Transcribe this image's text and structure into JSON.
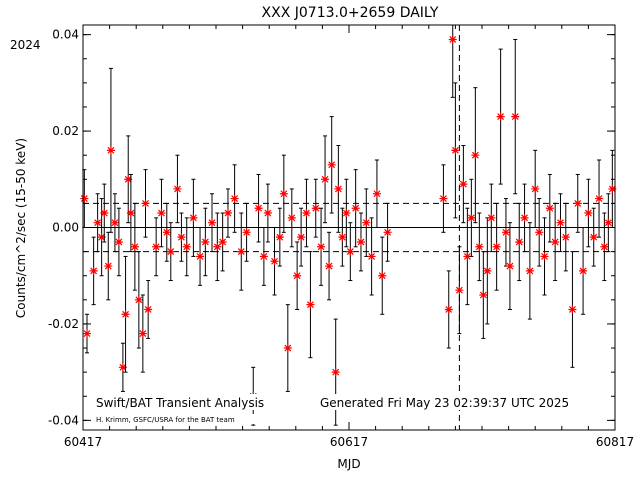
{
  "chart_data": {
    "type": "scatter",
    "title": "XXX J0713.0+2659 DAILY",
    "xlabel": "MJD",
    "ylabel": "Counts/cm^2/sec (15-50 keV)",
    "year_label": "2024",
    "xlim": [
      60417,
      60817
    ],
    "ylim": [
      -0.042,
      0.042
    ],
    "x_ticks": [
      "60417",
      "60617",
      "60817"
    ],
    "y_ticks": [
      "-0.04",
      "-0.02",
      "0.00",
      "0.02",
      "0.04"
    ],
    "footer_left": "Swift/BAT Transient Analysis",
    "footer_credit": "H. Krimm, GSFC/USRA for the BAT team",
    "footer_right": "Generated Fri May 23 02:39:37 UTC 2025",
    "reference_lines": {
      "zero": 0.0,
      "upper": 0.005,
      "lower": -0.005
    },
    "vertical_marker_mjd": 60700,
    "marker_color": "#ff0000",
    "series": [
      {
        "points": [
          {
            "x": 60418,
            "y": 0.006,
            "err": 0.006
          },
          {
            "x": 60420,
            "y": -0.022,
            "err": 0.004
          },
          {
            "x": 60425,
            "y": -0.009,
            "err": 0.007
          },
          {
            "x": 60428,
            "y": 0.001,
            "err": 0.006
          },
          {
            "x": 60431,
            "y": -0.002,
            "err": 0.008
          },
          {
            "x": 60433,
            "y": 0.003,
            "err": 0.006
          },
          {
            "x": 60436,
            "y": -0.008,
            "err": 0.007
          },
          {
            "x": 60438,
            "y": 0.016,
            "err": 0.017
          },
          {
            "x": 60441,
            "y": 0.001,
            "err": 0.006
          },
          {
            "x": 60444,
            "y": -0.003,
            "err": 0.007
          },
          {
            "x": 60447,
            "y": -0.029,
            "err": 0.005
          },
          {
            "x": 60449,
            "y": -0.018,
            "err": 0.012
          },
          {
            "x": 60451,
            "y": 0.01,
            "err": 0.009
          },
          {
            "x": 60453,
            "y": 0.003,
            "err": 0.008
          },
          {
            "x": 60456,
            "y": -0.004,
            "err": 0.009
          },
          {
            "x": 60459,
            "y": -0.015,
            "err": 0.01
          },
          {
            "x": 60462,
            "y": -0.022,
            "err": 0.008
          },
          {
            "x": 60464,
            "y": 0.005,
            "err": 0.007
          },
          {
            "x": 60466,
            "y": -0.017,
            "err": 0.006
          },
          {
            "x": 60472,
            "y": -0.004,
            "err": 0.006
          },
          {
            "x": 60476,
            "y": 0.003,
            "err": 0.007
          },
          {
            "x": 60480,
            "y": -0.001,
            "err": 0.006
          },
          {
            "x": 60483,
            "y": -0.005,
            "err": 0.006
          },
          {
            "x": 60488,
            "y": 0.008,
            "err": 0.007
          },
          {
            "x": 60491,
            "y": -0.002,
            "err": 0.005
          },
          {
            "x": 60495,
            "y": -0.004,
            "err": 0.006
          },
          {
            "x": 60500,
            "y": 0.002,
            "err": 0.008
          },
          {
            "x": 60505,
            "y": -0.006,
            "err": 0.006
          },
          {
            "x": 60509,
            "y": -0.003,
            "err": 0.007
          },
          {
            "x": 60514,
            "y": 0.001,
            "err": 0.006
          },
          {
            "x": 60518,
            "y": -0.004,
            "err": 0.007
          },
          {
            "x": 60522,
            "y": -0.003,
            "err": 0.006
          },
          {
            "x": 60526,
            "y": 0.003,
            "err": 0.005
          },
          {
            "x": 60531,
            "y": 0.006,
            "err": 0.007
          },
          {
            "x": 60536,
            "y": -0.005,
            "err": 0.008
          },
          {
            "x": 60540,
            "y": -0.001,
            "err": 0.006
          },
          {
            "x": 60545,
            "y": -0.035,
            "err": 0.006
          },
          {
            "x": 60549,
            "y": 0.004,
            "err": 0.007
          },
          {
            "x": 60553,
            "y": -0.006,
            "err": 0.006
          },
          {
            "x": 60556,
            "y": 0.003,
            "err": 0.006
          },
          {
            "x": 60561,
            "y": -0.007,
            "err": 0.007
          },
          {
            "x": 60565,
            "y": -0.002,
            "err": 0.006
          },
          {
            "x": 60568,
            "y": 0.007,
            "err": 0.008
          },
          {
            "x": 60571,
            "y": -0.025,
            "err": 0.009
          },
          {
            "x": 60574,
            "y": 0.002,
            "err": 0.006
          },
          {
            "x": 60578,
            "y": -0.01,
            "err": 0.007
          },
          {
            "x": 60581,
            "y": -0.002,
            "err": 0.006
          },
          {
            "x": 60585,
            "y": 0.003,
            "err": 0.007
          },
          {
            "x": 60588,
            "y": -0.016,
            "err": 0.011
          },
          {
            "x": 60592,
            "y": 0.004,
            "err": 0.006
          },
          {
            "x": 60596,
            "y": -0.004,
            "err": 0.008
          },
          {
            "x": 60599,
            "y": 0.01,
            "err": 0.009
          },
          {
            "x": 60602,
            "y": -0.008,
            "err": 0.007
          },
          {
            "x": 60604,
            "y": 0.013,
            "err": 0.01
          },
          {
            "x": 60607,
            "y": -0.03,
            "err": 0.011
          },
          {
            "x": 60609,
            "y": 0.008,
            "err": 0.009
          },
          {
            "x": 60612,
            "y": -0.002,
            "err": 0.006
          },
          {
            "x": 60615,
            "y": 0.003,
            "err": 0.007
          },
          {
            "x": 60618,
            "y": -0.005,
            "err": 0.006
          },
          {
            "x": 60622,
            "y": 0.004,
            "err": 0.008
          },
          {
            "x": 60626,
            "y": -0.003,
            "err": 0.006
          },
          {
            "x": 60630,
            "y": 0.001,
            "err": 0.007
          },
          {
            "x": 60634,
            "y": -0.006,
            "err": 0.008
          },
          {
            "x": 60638,
            "y": 0.007,
            "err": 0.007
          },
          {
            "x": 60642,
            "y": -0.01,
            "err": 0.008
          },
          {
            "x": 60646,
            "y": -0.001,
            "err": 0.006
          },
          {
            "x": 60688,
            "y": 0.006,
            "err": 0.007
          },
          {
            "x": 60692,
            "y": -0.017,
            "err": 0.008
          },
          {
            "x": 60695,
            "y": 0.039,
            "err": 0.012
          },
          {
            "x": 60697,
            "y": 0.016,
            "err": 0.014
          },
          {
            "x": 60700,
            "y": -0.013,
            "err": 0.009
          },
          {
            "x": 60703,
            "y": 0.009,
            "err": 0.008
          },
          {
            "x": 60706,
            "y": -0.006,
            "err": 0.01
          },
          {
            "x": 60709,
            "y": 0.002,
            "err": 0.008
          },
          {
            "x": 60712,
            "y": 0.015,
            "err": 0.014
          },
          {
            "x": 60715,
            "y": -0.004,
            "err": 0.007
          },
          {
            "x": 60718,
            "y": -0.014,
            "err": 0.009
          },
          {
            "x": 60721,
            "y": -0.009,
            "err": 0.011
          },
          {
            "x": 60724,
            "y": 0.002,
            "err": 0.007
          },
          {
            "x": 60728,
            "y": -0.004,
            "err": 0.009
          },
          {
            "x": 60731,
            "y": 0.023,
            "err": 0.014
          },
          {
            "x": 60735,
            "y": -0.001,
            "err": 0.007
          },
          {
            "x": 60738,
            "y": -0.008,
            "err": 0.009
          },
          {
            "x": 60742,
            "y": 0.023,
            "err": 0.016
          },
          {
            "x": 60745,
            "y": -0.003,
            "err": 0.008
          },
          {
            "x": 60749,
            "y": 0.002,
            "err": 0.007
          },
          {
            "x": 60753,
            "y": -0.009,
            "err": 0.01
          },
          {
            "x": 60757,
            "y": 0.008,
            "err": 0.008
          },
          {
            "x": 60760,
            "y": -0.001,
            "err": 0.007
          },
          {
            "x": 60764,
            "y": -0.006,
            "err": 0.008
          },
          {
            "x": 60768,
            "y": 0.004,
            "err": 0.007
          },
          {
            "x": 60772,
            "y": -0.003,
            "err": 0.008
          },
          {
            "x": 60776,
            "y": 0.001,
            "err": 0.006
          },
          {
            "x": 60780,
            "y": -0.002,
            "err": 0.007
          },
          {
            "x": 60785,
            "y": -0.017,
            "err": 0.012
          },
          {
            "x": 60789,
            "y": 0.005,
            "err": 0.006
          },
          {
            "x": 60793,
            "y": -0.009,
            "err": 0.009
          },
          {
            "x": 60797,
            "y": 0.003,
            "err": 0.007
          },
          {
            "x": 60801,
            "y": -0.002,
            "err": 0.006
          },
          {
            "x": 60805,
            "y": 0.006,
            "err": 0.008
          },
          {
            "x": 60809,
            "y": -0.004,
            "err": 0.007
          },
          {
            "x": 60812,
            "y": 0.001,
            "err": 0.006
          },
          {
            "x": 60815,
            "y": 0.008,
            "err": 0.008
          }
        ]
      }
    ]
  }
}
